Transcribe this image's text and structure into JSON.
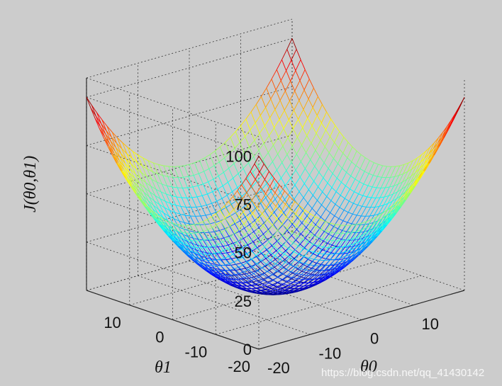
{
  "chart_data": {
    "type": "surface",
    "function": "J(theta0, theta1) = (theta0^2 + theta1^2) / 8",
    "series": [
      {
        "values_sample": [
          {
            "x": 0,
            "y": 0,
            "z": 0
          },
          {
            "x": 20,
            "y": 0,
            "z": 50
          },
          {
            "x": 0,
            "y": -20,
            "z": 50
          },
          {
            "x": 20,
            "y": -20,
            "z": 100
          }
        ]
      }
    ],
    "xlabel": "θ0",
    "ylabel": "θ1",
    "zlabel": "J(θ0,θ1)",
    "xlim": [
      -20,
      20
    ],
    "ylim": [
      -20,
      20
    ],
    "zlim": [
      0,
      110
    ],
    "xticks": [
      "-20",
      "-10",
      "0",
      "10"
    ],
    "yticks": [
      "-20",
      "-10",
      "0",
      "10"
    ],
    "zticks": [
      "0",
      "25",
      "50",
      "75",
      "100"
    ],
    "grid": true,
    "colormap": "jet"
  },
  "watermark": "https://blog.csdn.net/qq_41430142"
}
